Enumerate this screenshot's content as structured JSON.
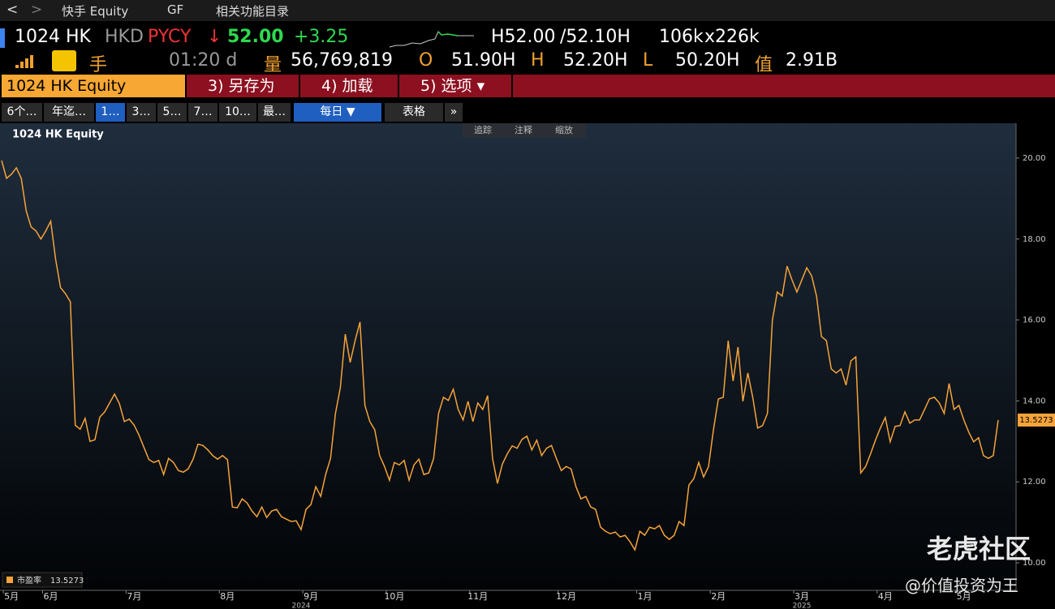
{
  "nav": {
    "items": [
      "快手 Equity",
      "GF",
      "相关功能目录"
    ]
  },
  "quote": {
    "ticker": "1024 HK",
    "currency": "HKD",
    "source": "PYCY",
    "arrow": "↓",
    "price": "52.00",
    "change": "+3.25",
    "bid": "H52.00",
    "ask": "/52.10H",
    "bid_size": "106k",
    "ask_size": "x226k"
  },
  "stats": {
    "unit": "手",
    "time": "01:20 d",
    "volume_label": "量",
    "volume": "56,769,819",
    "open_label": "O",
    "open": "51.90H",
    "high_label": "H",
    "high": "52.20H",
    "low_label": "L",
    "low": "50.20H",
    "value_label": "值",
    "value": "2.91B"
  },
  "menu": [
    "1024 HK Equity",
    "3) 另存为",
    "4) 加载",
    "5) 选项 ▾"
  ],
  "tabs": [
    "6个…",
    "年迄…",
    "1…",
    "3…",
    "5…",
    "7…",
    "10…",
    "最…",
    "每日 ▼",
    "表格",
    "»"
  ],
  "tools": [
    "追踪",
    "注释",
    "缩放"
  ],
  "watermark": {
    "brand": "老虎社区",
    "author": "@价值投资为王"
  },
  "chart_data": {
    "type": "line",
    "title": "1024 HK Equity",
    "series": [
      {
        "name": "市盈率",
        "color": "#f5a33a",
        "values": [
          19.94,
          19.5,
          19.6,
          19.76,
          19.5,
          18.7,
          18.3,
          18.2,
          18.0,
          18.2,
          18.44,
          17.5,
          16.8,
          16.65,
          16.45,
          13.4,
          13.3,
          13.57,
          13.0,
          13.04,
          13.6,
          13.73,
          13.95,
          14.17,
          13.93,
          13.49,
          13.55,
          13.4,
          13.15,
          12.85,
          12.55,
          12.48,
          12.53,
          12.18,
          12.58,
          12.48,
          12.28,
          12.24,
          12.32,
          12.56,
          12.93,
          12.9,
          12.79,
          12.65,
          12.56,
          12.65,
          12.55,
          11.38,
          11.36,
          11.58,
          11.48,
          11.28,
          11.14,
          11.38,
          11.12,
          11.28,
          11.32,
          11.14,
          11.08,
          11.02,
          11.04,
          10.82,
          11.32,
          11.44,
          11.88,
          11.64,
          12.18,
          12.58,
          13.69,
          14.33,
          15.65,
          14.95,
          15.49,
          15.95,
          13.89,
          13.49,
          13.29,
          12.65,
          12.38,
          12.04,
          12.48,
          12.42,
          12.53,
          12.04,
          12.42,
          12.56,
          12.18,
          12.22,
          12.58,
          13.69,
          14.09,
          14.01,
          14.29,
          13.79,
          13.53,
          13.99,
          13.49,
          13.95,
          13.79,
          14.13,
          12.58,
          11.96,
          12.44,
          12.69,
          12.89,
          12.83,
          13.05,
          13.13,
          12.79,
          13.03,
          12.65,
          12.83,
          12.9,
          12.58,
          12.28,
          12.38,
          12.32,
          11.88,
          11.58,
          11.64,
          11.38,
          11.32,
          10.88,
          10.78,
          10.72,
          10.76,
          10.64,
          10.68,
          10.52,
          10.32,
          10.78,
          10.68,
          10.88,
          10.84,
          10.92,
          10.68,
          10.58,
          10.68,
          11.02,
          10.92,
          11.92,
          12.08,
          12.48,
          12.12,
          12.38,
          13.29,
          14.05,
          14.09,
          15.49,
          14.49,
          15.33,
          13.99,
          14.69,
          14.09,
          13.33,
          13.39,
          13.69,
          15.99,
          16.69,
          16.59,
          17.33,
          16.99,
          16.69,
          16.99,
          17.29,
          17.09,
          16.59,
          15.59,
          15.49,
          14.79,
          14.69,
          14.79,
          14.39,
          14.99,
          15.09,
          12.22,
          12.38,
          12.69,
          13.03,
          13.33,
          13.59,
          12.99,
          13.37,
          13.39,
          13.73,
          13.45,
          13.53,
          13.53,
          13.79,
          14.05,
          14.09,
          13.95,
          13.69,
          14.43,
          13.79,
          13.89,
          13.53,
          13.23,
          12.99,
          13.09,
          12.65,
          12.58,
          12.65,
          13.5273
        ]
      }
    ],
    "categories": [
      null,
      null,
      "5月",
      null,
      null,
      null,
      null,
      null,
      null,
      null,
      "6月",
      null,
      null,
      null,
      null,
      null,
      null,
      null,
      null,
      null,
      null,
      null,
      null,
      null,
      null,
      null,
      null,
      "7月",
      null,
      null,
      null,
      null,
      null,
      null,
      null,
      null,
      null,
      null,
      null,
      null,
      null,
      null,
      null,
      null,
      null,
      null,
      "8月",
      null,
      null,
      null,
      null,
      null,
      null,
      null,
      null,
      null,
      null,
      null,
      null,
      null,
      null,
      null,
      null,
      "9月",
      null,
      null,
      null,
      null,
      null,
      null,
      null,
      null,
      null,
      null,
      null,
      null,
      null,
      null,
      null,
      null,
      "10月",
      null,
      null,
      null,
      null,
      null,
      null,
      null,
      null,
      null,
      null,
      null,
      null,
      null,
      null,
      null,
      null,
      "11月",
      null,
      null,
      null,
      null,
      null,
      null,
      null,
      null,
      null,
      null,
      null,
      null,
      null,
      null,
      null,
      null,
      null,
      "12月",
      null,
      null,
      null,
      null,
      null,
      null,
      null,
      null,
      null,
      null,
      null,
      null,
      null,
      null,
      null,
      "1月",
      null,
      null,
      null,
      null,
      null,
      null,
      null,
      null,
      null,
      null,
      null,
      null,
      null,
      null,
      "2月",
      null,
      null,
      null,
      null,
      null,
      null,
      null,
      null,
      null,
      null,
      null,
      null,
      null,
      null,
      null,
      null,
      "3月",
      null,
      null,
      null,
      null,
      null,
      null,
      null,
      null,
      null,
      null,
      null,
      null,
      null,
      null,
      null,
      null,
      "4月",
      null,
      null,
      null,
      null,
      null,
      null,
      null,
      null,
      null,
      null,
      null,
      null,
      null,
      null,
      null,
      "5月",
      null,
      null,
      null,
      null,
      null,
      null,
      null
    ],
    "year_labels": [
      null,
      null,
      null,
      null,
      null,
      null,
      null,
      null,
      null,
      null,
      null,
      null,
      null,
      null,
      null,
      null,
      null,
      null,
      null,
      null,
      null,
      null,
      null,
      null,
      null,
      null,
      null,
      null,
      null,
      null,
      null,
      null,
      null,
      null,
      null,
      null,
      null,
      null,
      null,
      null,
      null,
      null,
      null,
      null,
      null,
      null,
      null,
      null,
      null,
      null,
      null,
      null,
      null,
      null,
      null,
      null,
      null,
      null,
      null,
      null,
      null,
      "2024",
      null,
      null,
      null,
      null,
      null,
      null,
      null,
      null,
      null,
      null,
      null,
      null,
      null,
      null,
      null,
      null,
      null,
      null,
      null,
      null,
      null,
      null,
      null,
      null,
      null,
      null,
      null,
      null,
      null,
      null,
      null,
      null,
      null,
      null,
      null,
      null,
      null,
      null,
      null,
      null,
      null,
      null,
      null,
      null,
      null,
      null,
      null,
      null,
      null,
      null,
      null,
      null,
      null,
      null,
      null,
      null,
      null,
      null,
      null,
      null,
      null,
      null,
      null,
      null,
      null,
      null,
      null,
      null,
      null,
      null,
      null,
      null,
      null,
      null,
      null,
      null,
      null,
      null,
      null,
      null,
      null,
      null,
      null,
      null,
      null,
      null,
      null,
      null,
      null,
      null,
      null,
      null,
      null,
      null,
      null,
      null,
      null,
      null,
      null,
      null,
      null,
      "2025",
      null,
      null,
      null,
      null,
      null,
      null,
      null,
      null,
      null,
      null,
      null,
      null,
      null,
      null,
      null,
      null,
      null,
      null,
      null,
      null,
      null,
      null,
      null,
      null,
      null,
      null,
      null,
      null,
      null,
      null,
      null,
      null,
      null,
      null,
      null,
      null,
      null
    ],
    "ylim": [
      9.34,
      20.86
    ],
    "yticks": [
      {
        "value": 10,
        "label": "10.00"
      },
      {
        "value": 12,
        "label": "12.00"
      },
      {
        "value": 14,
        "label": "14.00"
      },
      {
        "value": 16,
        "label": "16.00"
      },
      {
        "value": 18,
        "label": "18.00"
      },
      {
        "value": 20,
        "label": "20.00"
      }
    ],
    "y_axis_side": "right",
    "grid": false
  }
}
